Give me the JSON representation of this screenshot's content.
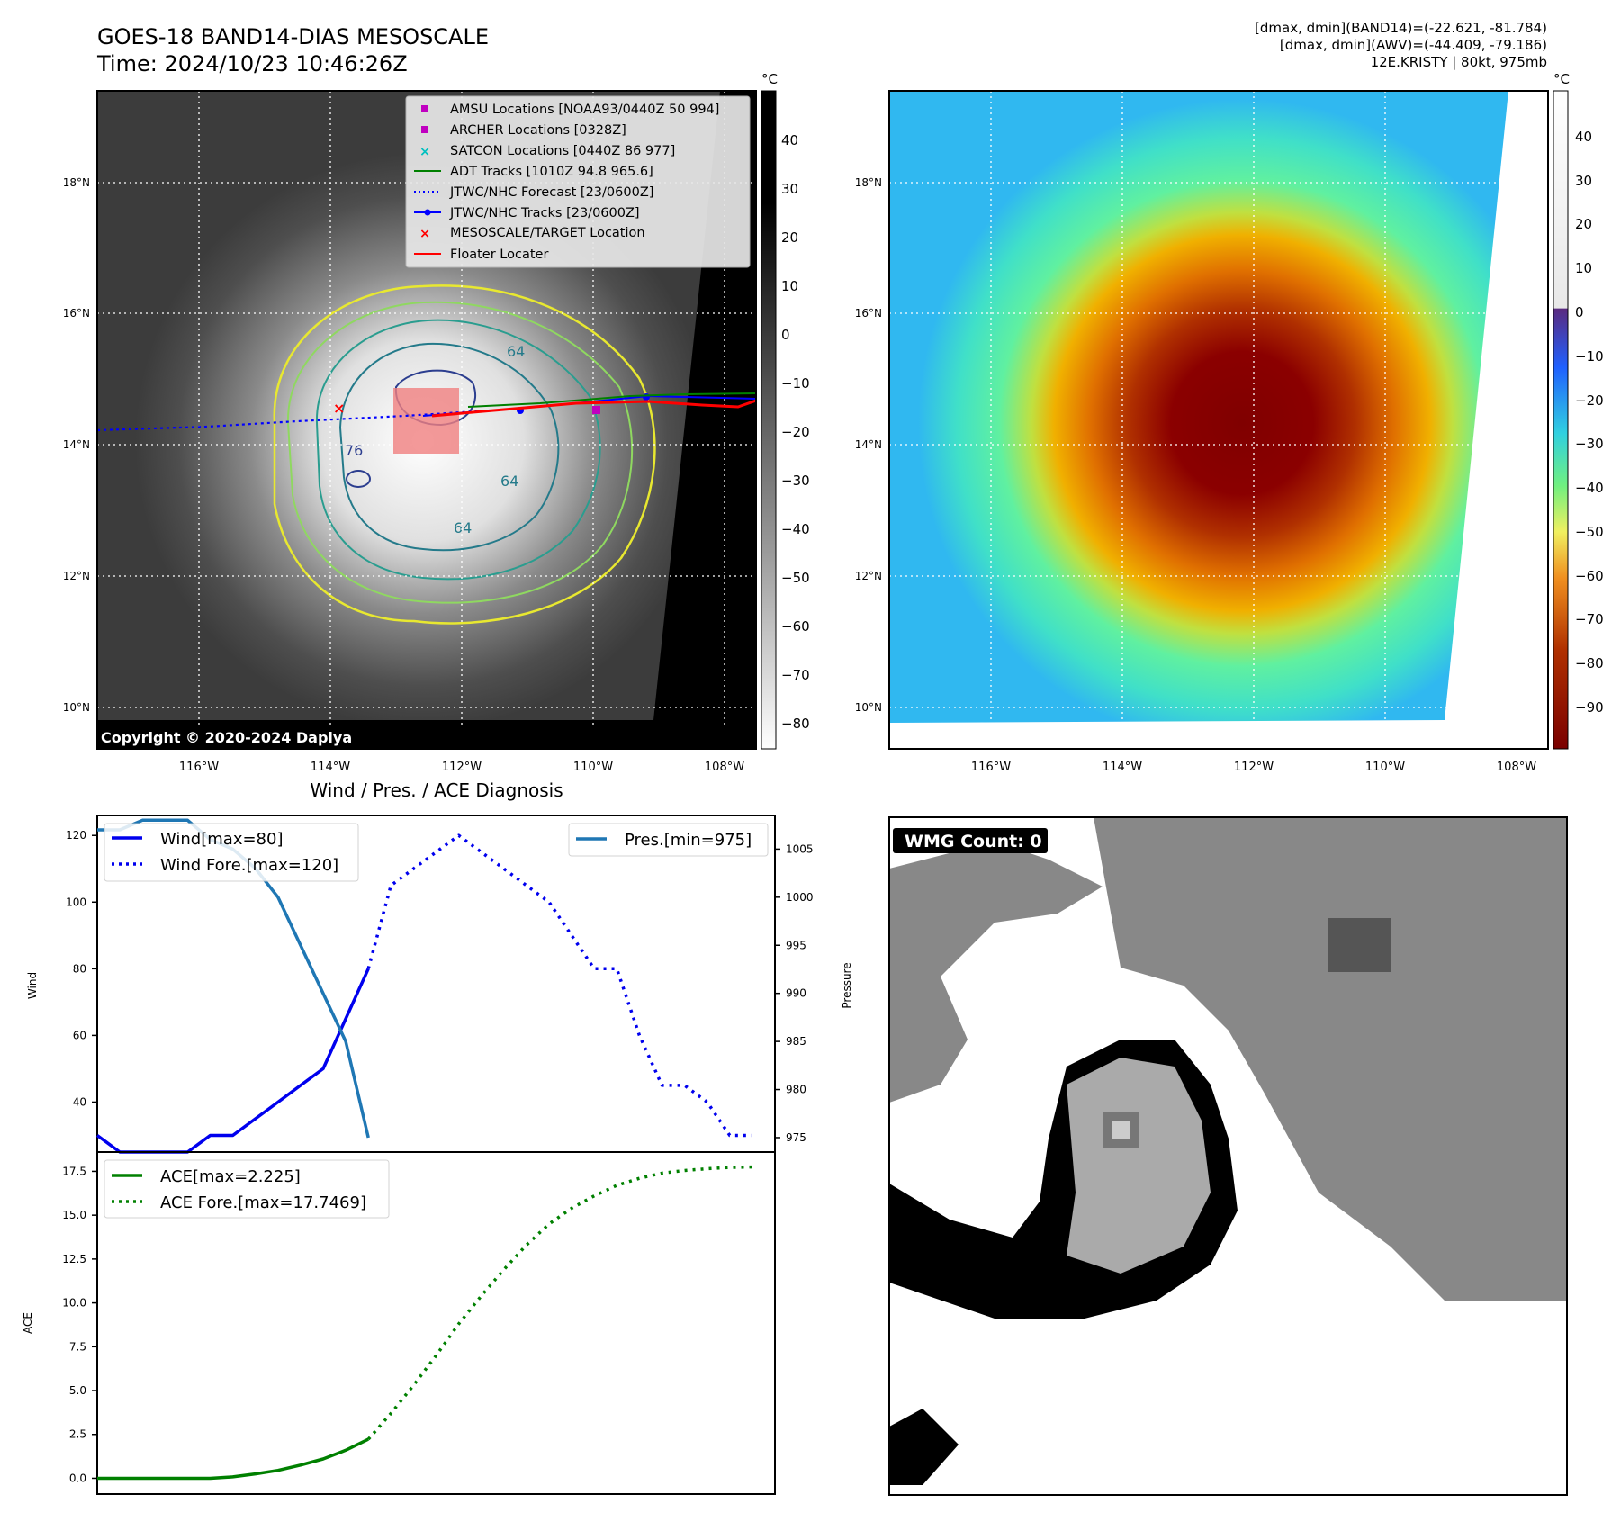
{
  "header": {
    "title_line1": "GOES-18 BAND14-DIAS MESOSCALE",
    "title_line2": "Time: 2024/10/23 10:46:26Z",
    "info_line1": "[dmax, dmin](BAND14)=(-22.621, -81.784)",
    "info_line2": "[dmax, dmin](AWV)=(-44.409, -79.186)",
    "info_line3": "12E.KRISTY | 80kt, 975mb"
  },
  "map_axes": {
    "lon_labels": [
      "116°W",
      "114°W",
      "112°W",
      "110°W",
      "108°W"
    ],
    "lat_labels": [
      "18°N",
      "16°N",
      "14°N",
      "12°N",
      "10°N"
    ]
  },
  "left_map": {
    "copyright": "Copyright © 2020-2024 Dapiya",
    "colorbar_unit": "°C",
    "colorbar_ticks": [
      "40",
      "30",
      "20",
      "10",
      "0",
      "−10",
      "−20",
      "−30",
      "−40",
      "−50",
      "−60",
      "−70",
      "−80"
    ],
    "contour_labels": [
      "64",
      "76",
      "64",
      "64"
    ],
    "legend": [
      {
        "label": "AMSU Locations [NOAA93/0440Z 50 994]",
        "marker": "square",
        "color": "#c000c0"
      },
      {
        "label": "ARCHER Locations [0328Z]",
        "marker": "square",
        "color": "#c000c0"
      },
      {
        "label": "SATCON Locations [0440Z 86 977]",
        "marker": "x",
        "color": "#00c0c0"
      },
      {
        "label": "ADT Tracks [1010Z 94.8 965.6]",
        "marker": "line",
        "color": "#008000"
      },
      {
        "label": "JTWC/NHC Forecast [23/0600Z]",
        "marker": "dotted",
        "color": "#0000ff"
      },
      {
        "label": "JTWC/NHC Tracks [23/0600Z]",
        "marker": "line-dot",
        "color": "#0000ff"
      },
      {
        "label": "MESOSCALE/TARGET Location",
        "marker": "x",
        "color": "#ff0000"
      },
      {
        "label": "Floater Locater",
        "marker": "line",
        "color": "#ff0000"
      }
    ]
  },
  "right_map": {
    "colorbar_unit": "°C",
    "colorbar_ticks": [
      "40",
      "30",
      "20",
      "10",
      "0",
      "−10",
      "−20",
      "−30",
      "−40",
      "−50",
      "−60",
      "−70",
      "−80",
      "−90"
    ]
  },
  "wmg": {
    "label": "WMG Count: 0"
  },
  "colors": {
    "wind": "#0000ee",
    "pressure": "#1f77b4",
    "ace": "#008000",
    "forecast_track": "#0000ff",
    "floater": "#ff0000"
  },
  "chart_data": [
    {
      "type": "line",
      "title": "Wind / Pres. / ACE Diagnosis",
      "ylabel": "Wind",
      "y2label": "Pressure",
      "ylim": [
        25,
        126
      ],
      "y2lim": [
        973.5,
        1008.5
      ],
      "yticks": [
        40,
        60,
        80,
        100,
        120
      ],
      "y2ticks": [
        975,
        980,
        985,
        990,
        995,
        1000,
        1005
      ],
      "x_index_range": [
        0,
        30
      ],
      "series": [
        {
          "name": "Wind[max=80]",
          "axis": "left",
          "style": "solid",
          "x": [
            0,
            1,
            2,
            3,
            4,
            5,
            6,
            7,
            8,
            9,
            10,
            11,
            12
          ],
          "values": [
            30,
            25,
            25,
            25,
            25,
            30,
            30,
            35,
            40,
            45,
            50,
            65,
            80
          ]
        },
        {
          "name": "Wind Fore.[max=120]",
          "axis": "left",
          "style": "dotted",
          "x": [
            12,
            13,
            14,
            15,
            16,
            17,
            18,
            19,
            20,
            21,
            22,
            23,
            24,
            25,
            26,
            27,
            28,
            29
          ],
          "values": [
            80,
            105,
            110,
            115,
            120,
            115,
            110,
            105,
            100,
            90,
            80,
            80,
            60,
            45,
            45,
            40,
            30,
            30
          ]
        },
        {
          "name": "Pres.[min=975]",
          "axis": "right",
          "style": "solid",
          "x": [
            0,
            1,
            2,
            3,
            4,
            5,
            6,
            7,
            8,
            9,
            10,
            11,
            12
          ],
          "values": [
            1007,
            1007,
            1008,
            1008,
            1008,
            1006,
            1005,
            1003,
            1000,
            995,
            990,
            985,
            975
          ]
        }
      ]
    },
    {
      "type": "line",
      "ylabel": "ACE",
      "ylim": [
        -0.9,
        18.6
      ],
      "yticks": [
        0.0,
        2.5,
        5.0,
        7.5,
        10.0,
        12.5,
        15.0,
        17.5
      ],
      "ytick_labels": [
        "0.0",
        "2.5",
        "5.0",
        "7.5",
        "10.0",
        "12.5",
        "15.0",
        "17.5"
      ],
      "x_index_range": [
        0,
        30
      ],
      "series": [
        {
          "name": "ACE[max=2.225]",
          "style": "solid",
          "x": [
            0,
            5,
            6,
            7,
            8,
            9,
            10,
            11,
            12
          ],
          "values": [
            0,
            0,
            0.08,
            0.25,
            0.45,
            0.75,
            1.1,
            1.6,
            2.225
          ]
        },
        {
          "name": "ACE Fore.[max=17.7469]",
          "style": "dotted",
          "x": [
            12,
            13,
            14,
            15,
            16,
            17,
            18,
            19,
            20,
            21,
            22,
            23,
            24,
            25,
            26,
            27,
            28,
            29
          ],
          "values": [
            2.225,
            3.7,
            5.3,
            7.0,
            8.8,
            10.4,
            11.9,
            13.3,
            14.5,
            15.4,
            16.1,
            16.7,
            17.1,
            17.4,
            17.55,
            17.65,
            17.72,
            17.7469
          ]
        }
      ]
    }
  ]
}
